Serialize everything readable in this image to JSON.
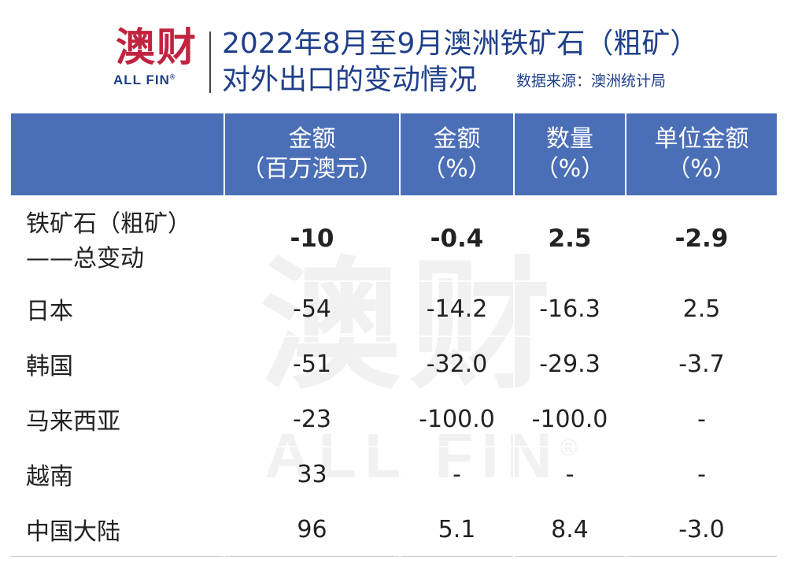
{
  "logo": {
    "cn": "澳财",
    "en": "ALL FIN",
    "reg": "®"
  },
  "title": {
    "line1": "2022年8月至9月澳洲铁矿石（粗矿）",
    "line2": "对外出口的变动情况"
  },
  "source": "数据来源：澳洲统计局",
  "table": {
    "headers": [
      {
        "line1": "",
        "line2": ""
      },
      {
        "line1": "金额",
        "line2": "（百万澳元）"
      },
      {
        "line1": "金额",
        "line2": "（%）"
      },
      {
        "line1": "数量",
        "line2": "（%）"
      },
      {
        "line1": "单位金额",
        "line2": "（%）"
      }
    ],
    "total": {
      "name_line1": "铁矿石（粗矿）",
      "name_line2": "——总变动",
      "values": [
        "-10",
        "-0.4",
        "2.5",
        "-2.9"
      ]
    },
    "rows": [
      {
        "name": "日本",
        "values": [
          "-54",
          "-14.2",
          "-16.3",
          "2.5"
        ]
      },
      {
        "name": "韩国",
        "values": [
          "-51",
          "-32.0",
          "-29.3",
          "-3.7"
        ]
      },
      {
        "name": "马来西亚",
        "values": [
          "-23",
          "-100.0",
          "-100.0",
          "-"
        ]
      },
      {
        "name": "越南",
        "values": [
          "33",
          "-",
          "-",
          "-"
        ]
      },
      {
        "name": "中国大陆",
        "values": [
          "96",
          "5.1",
          "8.4",
          "-3.0"
        ]
      }
    ]
  },
  "colors": {
    "header_bg": "#4b6fb7",
    "title": "#1f3f8a",
    "logo_red": "#c0243f"
  }
}
